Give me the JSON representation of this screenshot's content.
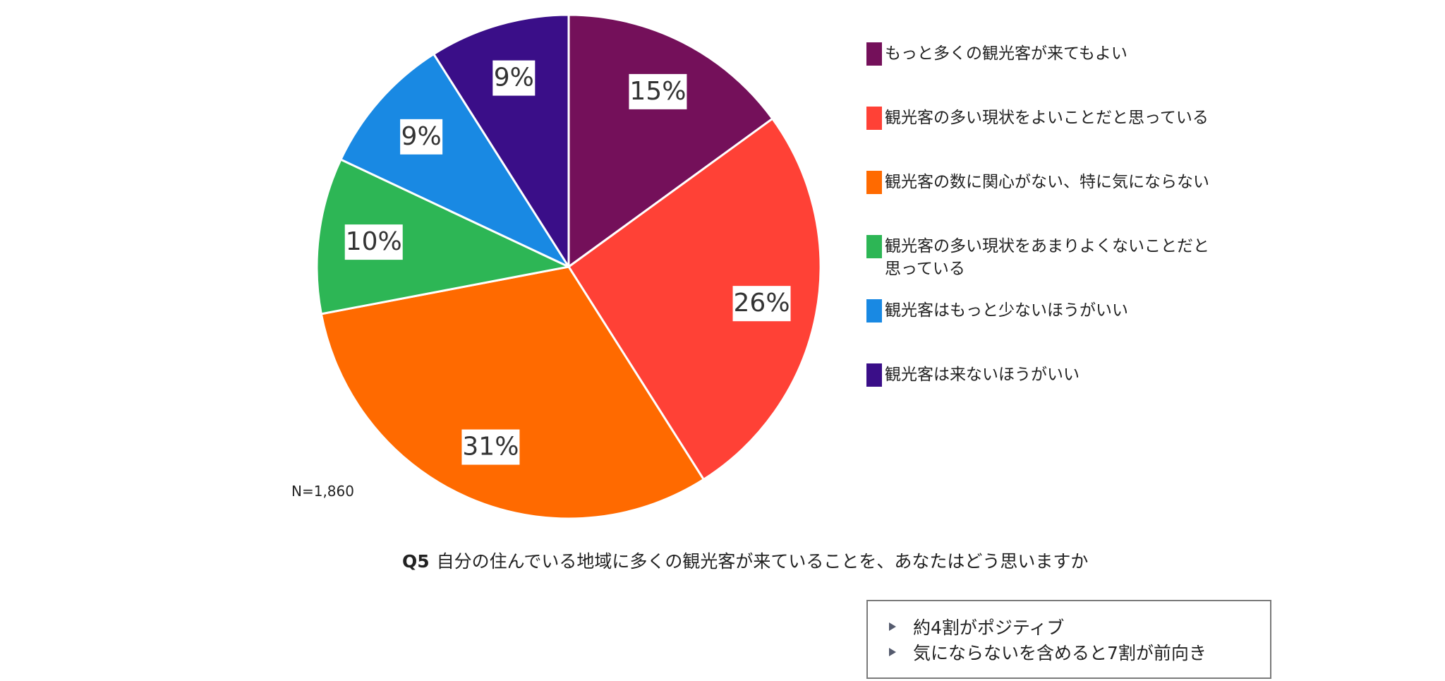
{
  "chart_data": {
    "type": "pie",
    "title": "",
    "start_angle": "12 o'clock",
    "direction": "clockwise",
    "legend_position": "right",
    "slices": [
      {
        "name": "もっと多くの観光客が来てもよい",
        "value": 15,
        "label": "15%",
        "color": "#74105a"
      },
      {
        "name": "観光客の多い現状をよいことだと思っている",
        "value": 26,
        "label": "26%",
        "color": "#ff4136"
      },
      {
        "name": "観光客の数に関心がない、特に気にならない",
        "value": 31,
        "label": "31%",
        "color": "#ff6a00"
      },
      {
        "name": "観光客の多い現状をあまりよくないことだと思っている",
        "value": 10,
        "label": "10%",
        "color": "#2db655"
      },
      {
        "name": "観光客はもっと少ないほうがいい",
        "value": 9,
        "label": "9%",
        "color": "#1989e3"
      },
      {
        "name": "観光客は来ないほうがいい",
        "value": 9,
        "label": "9%",
        "color": "#3a0e88"
      }
    ]
  },
  "legend": {
    "items": [
      {
        "line1": "もっと多くの観光客が来てもよい",
        "line2": ""
      },
      {
        "line1": "観光客の多い現状をよいことだと思っている",
        "line2": ""
      },
      {
        "line1": "観光客の数に関心がない、特に気にならない",
        "line2": ""
      },
      {
        "line1": "観光客の多い現状をあまりよくないことだと",
        "line2": "思っている"
      },
      {
        "line1": "観光客はもっと少ないほうがいい",
        "line2": ""
      },
      {
        "line1": "観光客は来ないほうがいい",
        "line2": ""
      }
    ]
  },
  "sample_size": "N=1,860",
  "question": {
    "number": "Q5",
    "text": "自分の住んでいる地域に多くの観光客が来ていることを、あなたはどう思いますか"
  },
  "notes": [
    "約4割がポジティブ",
    "気にならないを含めると7割が前向き"
  ]
}
